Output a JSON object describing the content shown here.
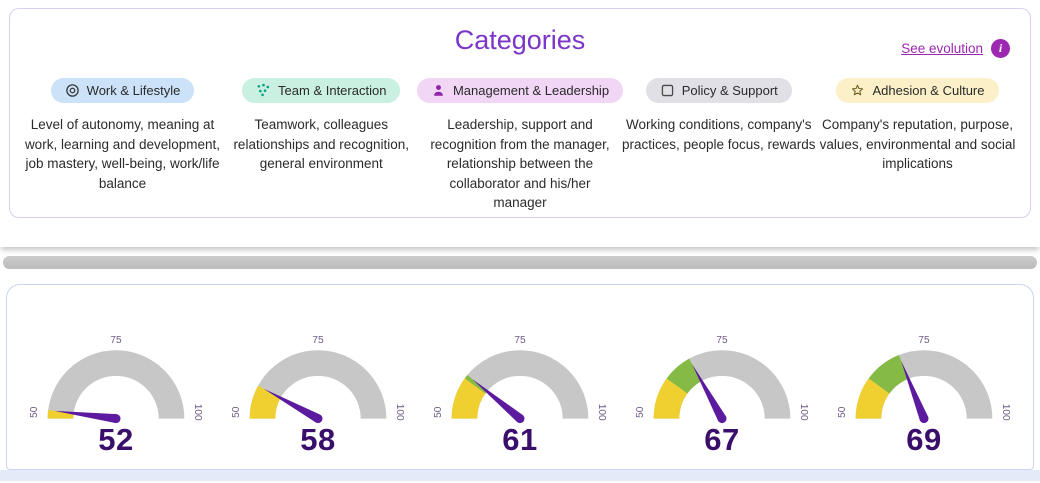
{
  "categories": {
    "title": "Categories",
    "link": "See evolution",
    "info_glyph": "i",
    "items": [
      {
        "name": "Work & Lifestyle",
        "description": "Level of autonomy, meaning at work, learning and development, job mastery, well-being, work/life balance",
        "icon": "target-icon",
        "pill_bg": "#cbe2f8"
      },
      {
        "name": "Team & Interaction",
        "description": "Teamwork, colleagues relationships and recognition, general environment",
        "icon": "dots-icon",
        "pill_bg": "#c9f0e0"
      },
      {
        "name": "Management & Leadership",
        "description": "Leadership, support and recognition from the manager, relationship between the collaborator and his/her manager",
        "icon": "leader-icon",
        "pill_bg": "#f1d6f5"
      },
      {
        "name": "Policy & Support",
        "description": "Working conditions, company's practices, people focus, rewards",
        "icon": "square-icon",
        "pill_bg": "#e1e0e7"
      },
      {
        "name": "Adhesion & Culture",
        "description": "Company's reputation, purpose, values, environmental and social implications",
        "icon": "star-icon",
        "pill_bg": "#fbf0c8"
      }
    ]
  },
  "chart_data": {
    "type": "gauge",
    "min": 50,
    "max": 100,
    "tick_labels": [
      "50",
      "75",
      "100"
    ],
    "yellow_threshold": 60,
    "categories": [
      "Work & Lifestyle",
      "Team & Interaction",
      "Management & Leadership",
      "Policy & Support",
      "Adhesion & Culture"
    ],
    "values": [
      52,
      58,
      61,
      67,
      69
    ],
    "colors": {
      "track": "#c7c7c7",
      "yellow": "#f0d030",
      "green": "#85bb45",
      "needle": "#5c1a9e",
      "value_text": "#3a0e6b"
    }
  }
}
